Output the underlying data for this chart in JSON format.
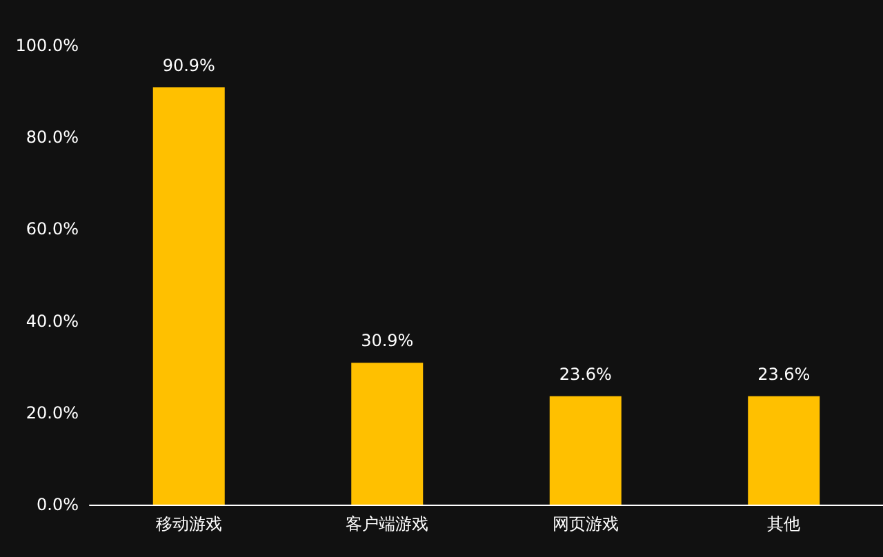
{
  "chart_data": {
    "type": "bar",
    "categories": [
      "移动游戏",
      "客户端游戏",
      "网页游戏",
      "其他"
    ],
    "values": [
      90.9,
      30.9,
      23.6,
      23.6
    ],
    "color": "#ffc000",
    "value_labels": [
      "90.9%",
      "30.9%",
      "23.6%",
      "23.6%"
    ],
    "ylim": [
      0,
      100
    ],
    "yticks": [
      {
        "value": 0,
        "label": "0.0%"
      },
      {
        "value": 20,
        "label": "20.0%"
      },
      {
        "value": 40,
        "label": "40.0%"
      },
      {
        "value": 60,
        "label": "60.0%"
      },
      {
        "value": 80,
        "label": "80.0%"
      },
      {
        "value": 100,
        "label": "100.0%"
      }
    ],
    "grid": false
  }
}
